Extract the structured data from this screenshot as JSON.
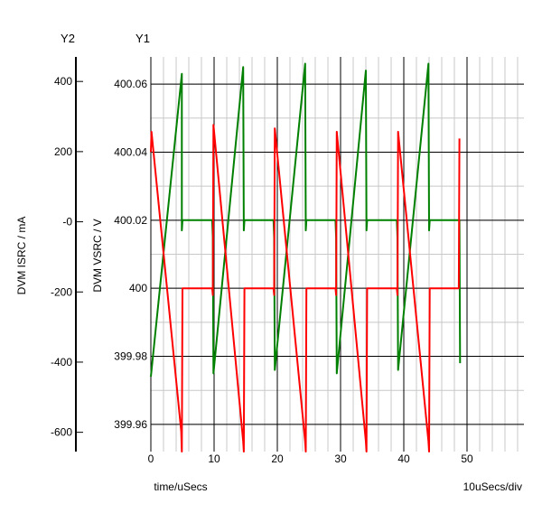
{
  "chart_data": {
    "type": "line",
    "y2_title": "Y2",
    "y1_title": "Y1",
    "y2_label": "DVM ISRC / mA",
    "y1_label": "DVM VSRC / V",
    "xlabel": "time/uSecs",
    "x_scale_note": "10uSecs/div",
    "xlim": [
      0,
      59
    ],
    "y1lim": [
      399.952,
      400.068
    ],
    "y2lim": [
      -655,
      470
    ],
    "x_ticks": [
      0,
      10,
      20,
      30,
      40,
      50
    ],
    "x_tick_labels": [
      "0",
      "10",
      "20",
      "30",
      "40",
      "50"
    ],
    "y1_ticks": [
      399.96,
      399.98,
      400,
      400.02,
      400.04,
      400.06
    ],
    "y1_tick_labels": [
      "399.96",
      "399.98",
      "400",
      "400.02",
      "400.04",
      "400.06"
    ],
    "y2_ticks": [
      -600,
      -400,
      -200,
      0,
      200,
      400
    ],
    "y2_tick_labels": [
      "-600",
      "-400",
      "-200",
      "-0",
      "200",
      "400"
    ],
    "grid": true,
    "series": [
      {
        "axis": "y1",
        "color": "#008000",
        "x": [
          0.0,
          4.9,
          4.9,
          5.0,
          9.7,
          9.8,
          9.9,
          14.6,
          14.7,
          14.8,
          19.4,
          19.5,
          19.6,
          24.4,
          24.5,
          24.6,
          29.2,
          29.3,
          29.4,
          34.0,
          34.1,
          34.2,
          38.9,
          39.0,
          39.1,
          43.9,
          44.0,
          44.1,
          48.8,
          48.9
        ],
        "y": [
          399.974,
          400.063,
          400.017,
          400.02,
          400.02,
          400.015,
          399.975,
          400.065,
          400.017,
          400.02,
          400.02,
          400.015,
          399.976,
          400.066,
          400.017,
          400.02,
          400.02,
          400.015,
          399.975,
          400.064,
          400.017,
          400.02,
          400.02,
          400.015,
          399.976,
          400.066,
          400.017,
          400.02,
          400.02,
          399.978
        ]
      },
      {
        "axis": "y1",
        "color": "#ff0000",
        "x": [
          0.0,
          0.1,
          4.8,
          4.9,
          5.0,
          9.7,
          9.8,
          9.9,
          14.6,
          14.7,
          14.8,
          19.4,
          19.5,
          19.6,
          24.4,
          24.5,
          24.6,
          29.2,
          29.3,
          29.4,
          34.0,
          34.1,
          34.2,
          38.9,
          39.0,
          39.1,
          43.9,
          44.0,
          44.1,
          48.7,
          48.8
        ],
        "y": [
          400.04,
          400.046,
          399.958,
          399.952,
          400.0,
          400.0,
          399.998,
          400.048,
          399.955,
          399.952,
          400.0,
          400.0,
          399.998,
          400.047,
          399.955,
          399.952,
          400.0,
          400.0,
          399.998,
          400.046,
          399.955,
          399.952,
          400.0,
          400.0,
          399.998,
          400.046,
          399.955,
          399.952,
          400.0,
          400.0,
          400.044
        ]
      }
    ]
  }
}
